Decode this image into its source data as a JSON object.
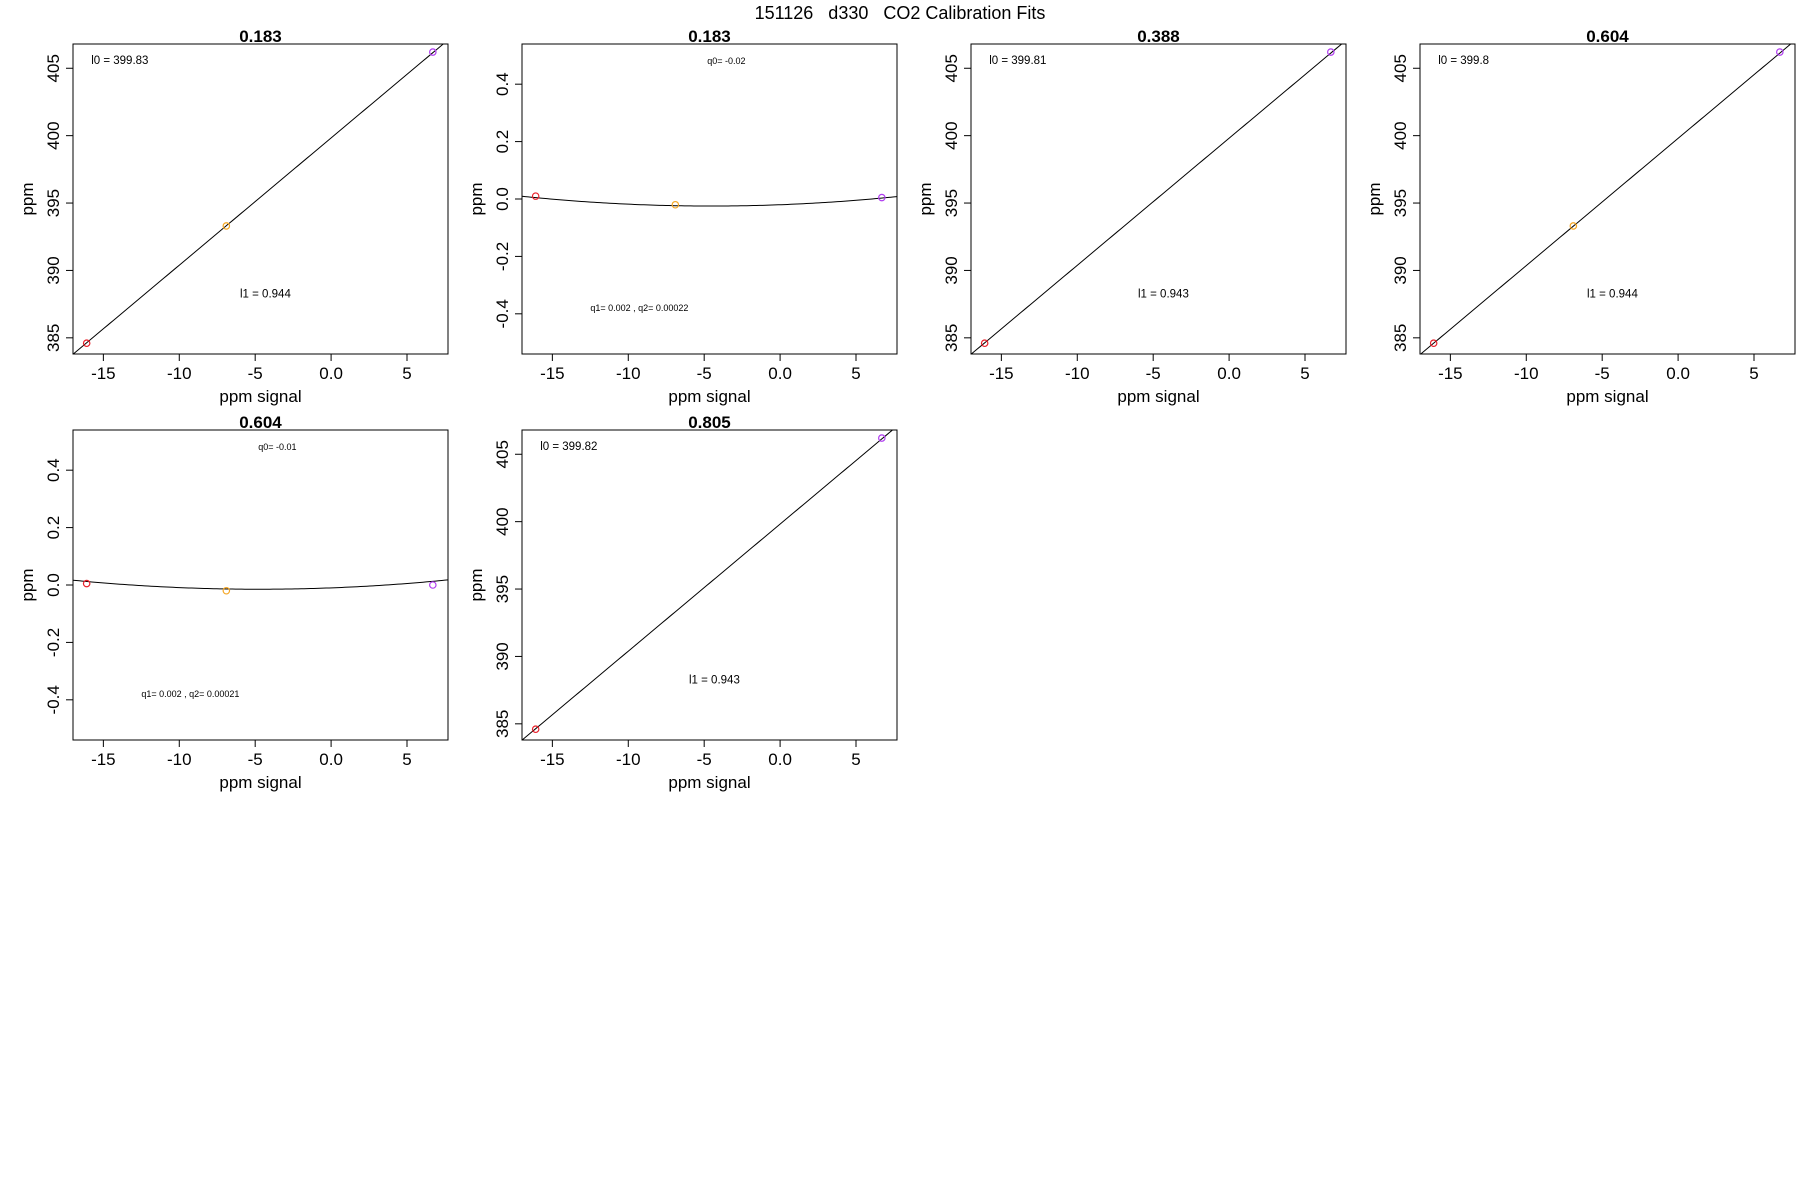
{
  "page": {
    "title": "151126   d330   CO2 Calibration Fits"
  },
  "colors": {
    "frame": "#000000",
    "fit_line": "#000000",
    "point_low": "#e8202a",
    "point_mid": "#f5a623",
    "point_high": "#b03cf0"
  },
  "chart_data": [
    {
      "type": "scatter",
      "title": "0.183",
      "xlabel": "ppm signal",
      "ylabel": "ppm",
      "xlim": [
        -17,
        7.7
      ],
      "ylim": [
        383.8,
        406.8
      ],
      "xticks": [
        -15,
        -10,
        -5,
        0,
        5
      ],
      "yticks": [
        385,
        390,
        395,
        400,
        405
      ],
      "grid": false,
      "fit": {
        "kind": "linear",
        "intercept": 399.83,
        "slope": 0.944
      },
      "annotations": [
        {
          "text": "l0 =  399.83",
          "x": -15.8,
          "y": 405.3,
          "size": "normal"
        },
        {
          "text": "l1 =  0.944",
          "x": -6.0,
          "y": 388.0,
          "size": "normal"
        }
      ],
      "points": [
        {
          "x": -16.1,
          "y": 384.6,
          "color": "#e8202a"
        },
        {
          "x": -6.9,
          "y": 393.3,
          "color": "#f5a623"
        },
        {
          "x": 6.7,
          "y": 406.2,
          "color": "#b03cf0"
        }
      ]
    },
    {
      "type": "scatter",
      "title": "0.183",
      "xlabel": "ppm signal",
      "ylabel": "ppm",
      "xlim": [
        -17,
        7.7
      ],
      "ylim": [
        -0.54,
        0.54
      ],
      "xticks": [
        -15,
        -10,
        -5,
        0,
        5
      ],
      "yticks": [
        -0.4,
        -0.2,
        0.0,
        0.2,
        0.4
      ],
      "grid": false,
      "fit": {
        "kind": "quadratic",
        "q0": -0.02,
        "q1": 0.002,
        "q2": 0.00022
      },
      "annotations": [
        {
          "text": "q0= -0.02",
          "x": -4.8,
          "y": 0.47,
          "size": "small"
        },
        {
          "text": "q1= 0.002 , q2= 0.00022",
          "x": -12.5,
          "y": -0.39,
          "size": "small"
        }
      ],
      "points": [
        {
          "x": -16.1,
          "y": 0.01,
          "color": "#e8202a"
        },
        {
          "x": -6.9,
          "y": -0.02,
          "color": "#f5a623"
        },
        {
          "x": 6.7,
          "y": 0.005,
          "color": "#b03cf0"
        }
      ]
    },
    {
      "type": "scatter",
      "title": "0.388",
      "xlabel": "ppm signal",
      "ylabel": "ppm",
      "xlim": [
        -17,
        7.7
      ],
      "ylim": [
        383.8,
        406.8
      ],
      "xticks": [
        -15,
        -10,
        -5,
        0,
        5
      ],
      "yticks": [
        385,
        390,
        395,
        400,
        405
      ],
      "grid": false,
      "fit": {
        "kind": "linear",
        "intercept": 399.81,
        "slope": 0.943
      },
      "annotations": [
        {
          "text": "l0 =  399.81",
          "x": -15.8,
          "y": 405.3,
          "size": "normal"
        },
        {
          "text": "l1 =  0.943",
          "x": -6.0,
          "y": 388.0,
          "size": "normal"
        }
      ],
      "points": [
        {
          "x": -16.1,
          "y": 384.6,
          "color": "#e8202a"
        },
        {
          "x": 6.7,
          "y": 406.2,
          "color": "#b03cf0"
        }
      ]
    },
    {
      "type": "scatter",
      "title": "0.604",
      "xlabel": "ppm signal",
      "ylabel": "ppm",
      "xlim": [
        -17,
        7.7
      ],
      "ylim": [
        383.8,
        406.8
      ],
      "xticks": [
        -15,
        -10,
        -5,
        0,
        5
      ],
      "yticks": [
        385,
        390,
        395,
        400,
        405
      ],
      "grid": false,
      "fit": {
        "kind": "linear",
        "intercept": 399.8,
        "slope": 0.944
      },
      "annotations": [
        {
          "text": "l0 =  399.8",
          "x": -15.8,
          "y": 405.3,
          "size": "normal"
        },
        {
          "text": "l1 =  0.944",
          "x": -6.0,
          "y": 388.0,
          "size": "normal"
        }
      ],
      "points": [
        {
          "x": -16.1,
          "y": 384.6,
          "color": "#e8202a"
        },
        {
          "x": -6.9,
          "y": 393.3,
          "color": "#f5a623"
        },
        {
          "x": 6.7,
          "y": 406.2,
          "color": "#b03cf0"
        }
      ]
    },
    {
      "type": "scatter",
      "title": "0.604",
      "xlabel": "ppm signal",
      "ylabel": "ppm",
      "xlim": [
        -17,
        7.7
      ],
      "ylim": [
        -0.54,
        0.54
      ],
      "xticks": [
        -15,
        -10,
        -5,
        0,
        5
      ],
      "yticks": [
        -0.4,
        -0.2,
        0.0,
        0.2,
        0.4
      ],
      "grid": false,
      "fit": {
        "kind": "quadratic",
        "q0": -0.01,
        "q1": 0.002,
        "q2": 0.00021
      },
      "annotations": [
        {
          "text": "q0= -0.01",
          "x": -4.8,
          "y": 0.47,
          "size": "small"
        },
        {
          "text": "q1= 0.002 , q2= 0.00021",
          "x": -12.5,
          "y": -0.39,
          "size": "small"
        }
      ],
      "points": [
        {
          "x": -16.1,
          "y": 0.005,
          "color": "#e8202a"
        },
        {
          "x": -6.9,
          "y": -0.02,
          "color": "#f5a623"
        },
        {
          "x": 6.7,
          "y": 0.0,
          "color": "#b03cf0"
        }
      ]
    },
    {
      "type": "scatter",
      "title": "0.805",
      "xlabel": "ppm signal",
      "ylabel": "ppm",
      "xlim": [
        -17,
        7.7
      ],
      "ylim": [
        383.8,
        406.8
      ],
      "xticks": [
        -15,
        -10,
        -5,
        0,
        5
      ],
      "yticks": [
        385,
        390,
        395,
        400,
        405
      ],
      "grid": false,
      "fit": {
        "kind": "linear",
        "intercept": 399.82,
        "slope": 0.943
      },
      "annotations": [
        {
          "text": "l0 =  399.82",
          "x": -15.8,
          "y": 405.3,
          "size": "normal"
        },
        {
          "text": "l1 =  0.943",
          "x": -6.0,
          "y": 388.0,
          "size": "normal"
        }
      ],
      "points": [
        {
          "x": -16.1,
          "y": 384.6,
          "color": "#e8202a"
        },
        {
          "x": 6.7,
          "y": 406.2,
          "color": "#b03cf0"
        }
      ]
    }
  ]
}
